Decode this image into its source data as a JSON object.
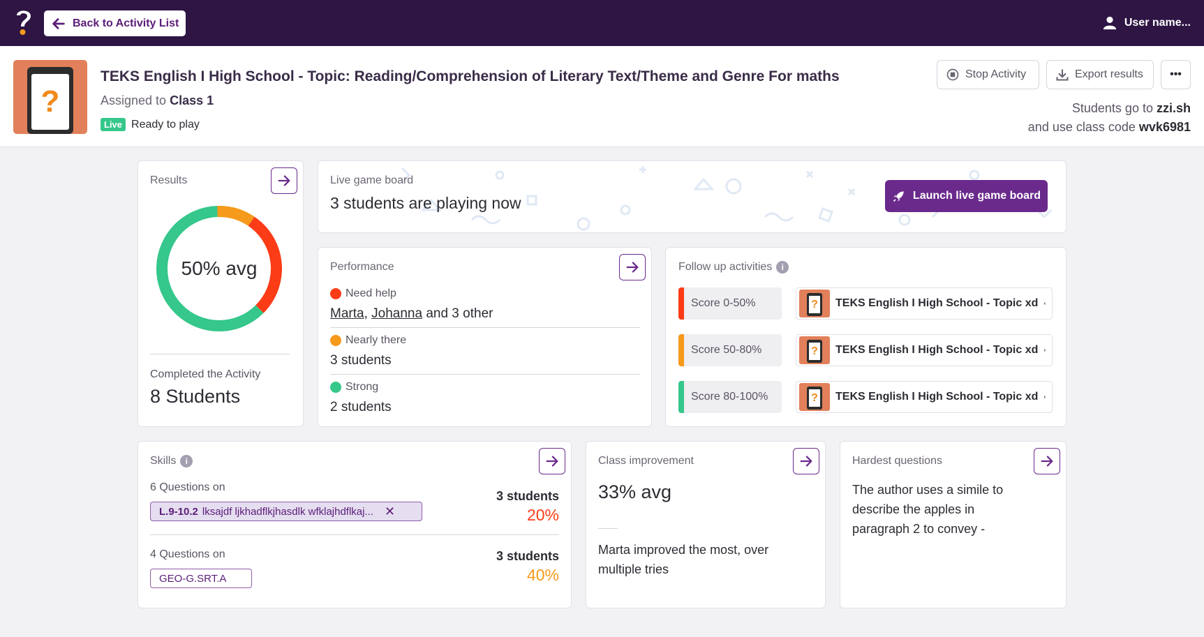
{
  "topbar": {
    "back_label": "Back to Activity List",
    "user_label": "User name..."
  },
  "activity": {
    "title": "TEKS English I High School - Topic: Reading/Comprehension of Literary Text/Theme and Genre For maths",
    "assigned_prefix": "Assigned to",
    "assigned_class": "Class 1",
    "live_badge": "Live",
    "status": "Ready to play"
  },
  "header_actions": {
    "stop_label": "Stop Activity",
    "export_label": "Export results",
    "more_label": "•••"
  },
  "join_info": {
    "line1_prefix": "Students go to",
    "site": "zzi.sh",
    "line2_prefix": "and use class code",
    "code": "wvk6981"
  },
  "results": {
    "label": "Results",
    "avg_text": "50% avg",
    "completed_label": "Completed the Activity",
    "completed_value": "8 Students",
    "segments": [
      {
        "name": "strong",
        "fraction": 0.62,
        "color": "#35c78b"
      },
      {
        "name": "nearly-there",
        "fraction": 0.1,
        "color": "#f59a1b"
      },
      {
        "name": "need-help",
        "fraction": 0.28,
        "color": "#fb3c16"
      }
    ]
  },
  "live_board": {
    "label": "Live game board",
    "text": "3 students are playing now",
    "button_label": "Launch live game board"
  },
  "performance": {
    "label": "Performance",
    "need_help": {
      "label": "Need help",
      "name1": "Marta",
      "sep": ",",
      "name2": "Johanna",
      "rest": "and 3 other",
      "color": "#fb3c16"
    },
    "nearly": {
      "label": "Nearly there",
      "value": "3 students",
      "color": "#f59a1b"
    },
    "strong": {
      "label": "Strong",
      "value": "2 students",
      "color": "#35c78b"
    }
  },
  "follow_up": {
    "label": "Follow up activities",
    "items": [
      {
        "score": "Score 0-50%",
        "activity": "TEKS English I High School - Topic xd",
        "color": "#fb3c16"
      },
      {
        "score": "Score 50-80%",
        "activity": "TEKS English I High School - Topic xd",
        "color": "#f59a1b"
      },
      {
        "score": "Score 80-100%",
        "activity": "TEKS English I High School - Topic xd",
        "color": "#35c78b"
      }
    ]
  },
  "skills": {
    "label": "Skills",
    "items": [
      {
        "questions": "6 Questions on",
        "tag_code": "L.9-10.2",
        "tag_text": "lksajdf ljkhadflkjhasdlk wfklajhdflkaj...",
        "students": "3 students",
        "pct": "20%",
        "pct_color": "#fb3c16"
      },
      {
        "questions": "4 Questions on",
        "tag_code": "GEO-G.SRT.A",
        "students": "3 students",
        "pct": "40%",
        "pct_color": "#f59a1b"
      }
    ]
  },
  "improvement": {
    "label": "Class improvement",
    "avg": "33% avg",
    "text": "Marta improved the most, over multiple tries"
  },
  "hardest": {
    "label": "Hardest questions",
    "text": "The author uses a simile to describe the apples in paragraph 2 to convey -"
  },
  "colors": {
    "brand": "#2e1544",
    "accent": "#6a2a8c",
    "red": "#fb3c16",
    "orange": "#f59a1b",
    "green": "#35c78b"
  }
}
